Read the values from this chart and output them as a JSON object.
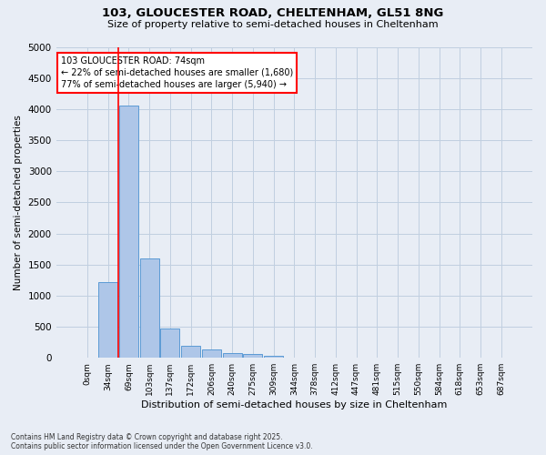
{
  "title_line1": "103, GLOUCESTER ROAD, CHELTENHAM, GL51 8NG",
  "title_line2": "Size of property relative to semi-detached houses in Cheltenham",
  "xlabel": "Distribution of semi-detached houses by size in Cheltenham",
  "ylabel": "Number of semi-detached properties",
  "footer_line1": "Contains HM Land Registry data © Crown copyright and database right 2025.",
  "footer_line2": "Contains public sector information licensed under the Open Government Licence v3.0.",
  "bar_labels": [
    "0sqm",
    "34sqm",
    "69sqm",
    "103sqm",
    "137sqm",
    "172sqm",
    "206sqm",
    "240sqm",
    "275sqm",
    "309sqm",
    "344sqm",
    "378sqm",
    "412sqm",
    "447sqm",
    "481sqm",
    "515sqm",
    "550sqm",
    "584sqm",
    "618sqm",
    "653sqm",
    "687sqm"
  ],
  "bar_values": [
    10,
    1220,
    4050,
    1600,
    470,
    190,
    130,
    80,
    55,
    30,
    10,
    5,
    2,
    0,
    0,
    0,
    0,
    0,
    0,
    0,
    0
  ],
  "bar_color": "#aec6e8",
  "bar_edge_color": "#5b9bd5",
  "grid_color": "#c0cfe0",
  "background_color": "#e8edf5",
  "ylim": [
    0,
    5000
  ],
  "yticks": [
    0,
    500,
    1000,
    1500,
    2000,
    2500,
    3000,
    3500,
    4000,
    4500,
    5000
  ],
  "annotation_text_line1": "103 GLOUCESTER ROAD: 74sqm",
  "annotation_text_line2": "← 22% of semi-detached houses are smaller (1,680)",
  "annotation_text_line3": "77% of semi-detached houses are larger (5,940) →",
  "annotation_box_color": "white",
  "annotation_box_edge_color": "red",
  "vline_color": "red",
  "vline_x": 1.5
}
